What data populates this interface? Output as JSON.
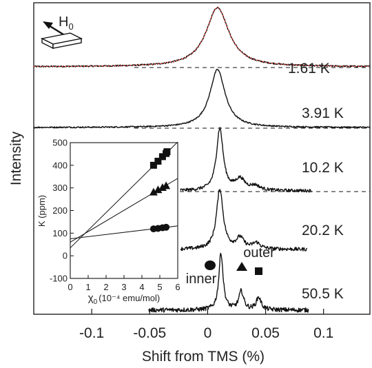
{
  "chart_data": [
    {
      "type": "line",
      "xlabel": "Shift from TMS (%)",
      "ylabel": "Intensity",
      "xlim": [
        -0.15,
        0.14
      ],
      "xticks": [
        "-0.1",
        "-0.05",
        "0",
        "0.05",
        "0.1"
      ],
      "xtick_values": [
        -0.1,
        -0.05,
        0,
        0.05,
        0.1
      ],
      "field_label": "H",
      "field_subscript": "0",
      "series": [
        {
          "name": "1.61 K",
          "peaks": [
            {
              "center": 0.0085,
              "amplitude": 1.0,
              "width": 0.012
            }
          ],
          "fit_overlay": true,
          "noise": 0.012
        },
        {
          "name": "3.91 K",
          "peaks": [
            {
              "center": 0.0085,
              "amplitude": 1.0,
              "width": 0.008
            }
          ],
          "fit_overlay": false,
          "noise": 0.012
        },
        {
          "name": "10.2 K",
          "peaks": [
            {
              "center": 0.0105,
              "amplitude": 1.0,
              "width": 0.0035
            },
            {
              "center": 0.028,
              "amplitude": 0.18,
              "width": 0.005
            },
            {
              "center": 0.041,
              "amplitude": 0.07,
              "width": 0.005
            }
          ],
          "fit_overlay": false,
          "noise": 0.025
        },
        {
          "name": "20.2 K",
          "peaks": [
            {
              "center": 0.0105,
              "amplitude": 1.0,
              "width": 0.0035
            },
            {
              "center": 0.028,
              "amplitude": 0.18,
              "width": 0.004
            },
            {
              "center": 0.042,
              "amplitude": 0.1,
              "width": 0.004
            }
          ],
          "fit_overlay": false,
          "noise": 0.03
        },
        {
          "name": "50.5 K",
          "peaks": [
            {
              "center": 0.0115,
              "amplitude": 1.0,
              "width": 0.0022
            },
            {
              "center": 0.029,
              "amplitude": 0.32,
              "width": 0.0025
            },
            {
              "center": 0.044,
              "amplitude": 0.22,
              "width": 0.0025
            }
          ],
          "fit_overlay": false,
          "noise": 0.04
        }
      ],
      "annotations": [
        "inner",
        "outer"
      ],
      "colors": {
        "data": "#111111",
        "fit": "#e0463c",
        "baseline": "#111111"
      }
    },
    {
      "type": "scatter",
      "xlabel": "χ",
      "xlabel_subscript": "0",
      "xlabel_units": "(10⁻⁴ emu/mol)",
      "ylabel": "K (ppm)",
      "xlim": [
        0,
        6
      ],
      "ylim": [
        -100,
        500
      ],
      "xticks": [
        "0",
        "1",
        "2",
        "3",
        "4",
        "5",
        "6"
      ],
      "yticks": [
        "-100",
        "0",
        "100",
        "200",
        "300",
        "400",
        "500"
      ],
      "series": [
        {
          "marker": "square",
          "x": [
            4.65,
            4.9,
            5.15,
            5.35,
            5.4
          ],
          "y": [
            400,
            418,
            438,
            452,
            460
          ],
          "fit": {
            "intercept": 35,
            "slope": 78
          }
        },
        {
          "marker": "triangle",
          "x": [
            4.65,
            4.9,
            5.15,
            5.35
          ],
          "y": [
            282,
            292,
            302,
            310
          ],
          "fit": {
            "intercept": 60,
            "slope": 47
          }
        },
        {
          "marker": "circle",
          "x": [
            4.65,
            4.9,
            5.15,
            5.35
          ],
          "y": [
            119,
            121,
            124,
            126
          ],
          "fit": {
            "intercept": 75,
            "slope": 9.5
          }
        }
      ]
    }
  ]
}
